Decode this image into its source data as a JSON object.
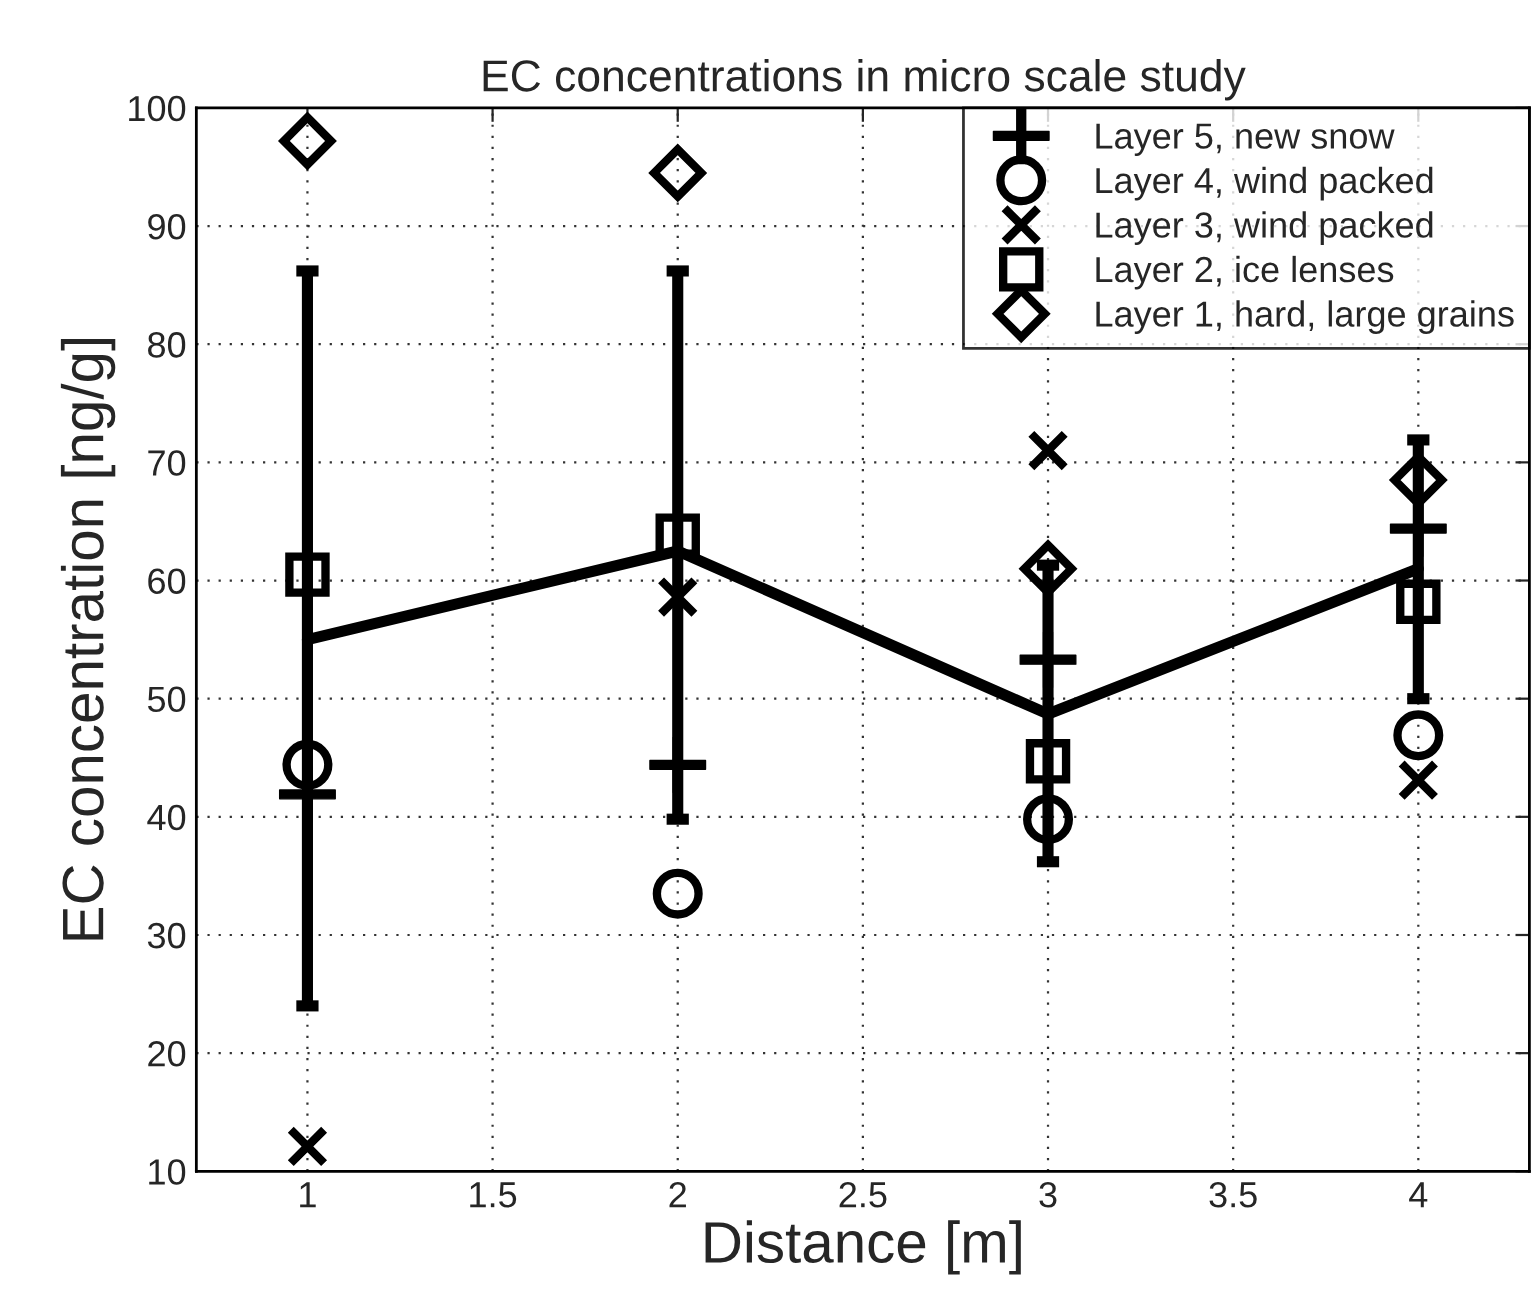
{
  "chart_data": {
    "type": "scatter",
    "title": "EC concentrations in micro scale study",
    "xlabel": "Distance [m]",
    "ylabel": "EC concentration [ng/g]",
    "x": [
      1,
      2,
      3,
      4
    ],
    "series": [
      {
        "name": "Layer 5, new snow",
        "color": "#000000",
        "marker": "cross",
        "values": [
          41.9,
          44.4,
          53.3,
          64.4
        ]
      },
      {
        "name": "Layer 4, wind packed",
        "color": "#000000",
        "marker": "circle",
        "values": [
          44.4,
          33.5,
          39.8,
          46.9
        ]
      },
      {
        "name": "Layer 3, wind packed",
        "color": "#000000",
        "marker": "x",
        "values": [
          12.1,
          58.6,
          71.0,
          43.1
        ]
      },
      {
        "name": "Layer 2, ice lenses",
        "color": "#000000",
        "marker": "square",
        "values": [
          60.5,
          63.8,
          44.7,
          58.2
        ]
      },
      {
        "name": "Layer 1, hard, large grains",
        "color": "#000000",
        "marker": "diamond",
        "values": [
          97.2,
          94.5,
          61.0,
          68.5
        ]
      },
      {
        "type": "line",
        "color": "#000000",
        "marker": "none",
        "line_style": "solid",
        "values": [
          55.0,
          62.5,
          48.7,
          61.0
        ],
        "errors": [
          [
            24.0,
            86.2
          ],
          [
            39.8,
            86.2
          ],
          [
            36.2,
            61.3
          ],
          [
            50.0,
            71.9
          ]
        ]
      }
    ],
    "xlim": [
      0.7,
      4.3
    ],
    "xticks": [
      1,
      1.5,
      2,
      2.5,
      3,
      3.5,
      4
    ],
    "ylim": [
      10,
      100
    ],
    "yticks": [
      10,
      20,
      30,
      40,
      50,
      60,
      70,
      80,
      90,
      100
    ],
    "grid": true,
    "legend": "top right"
  }
}
